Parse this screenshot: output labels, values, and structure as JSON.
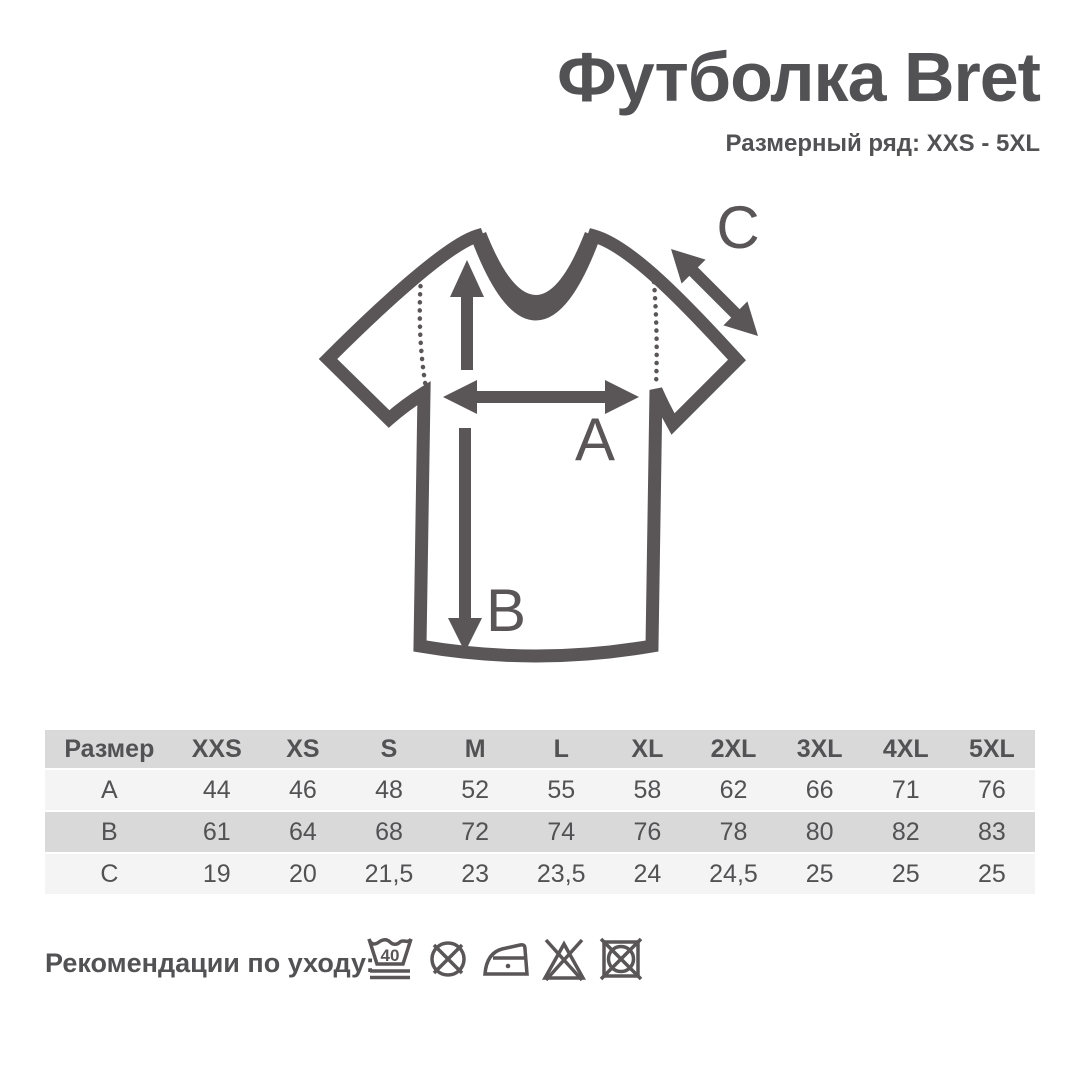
{
  "header": {
    "title": "Футболка Bret",
    "subtitle": "Размерный ряд: XXS - 5XL"
  },
  "diagram": {
    "label_a": "A",
    "label_b": "B",
    "label_c": "C"
  },
  "size_table": {
    "columns": [
      "Размер",
      "XXS",
      "XS",
      "S",
      "M",
      "L",
      "XL",
      "2XL",
      "3XL",
      "4XL",
      "5XL"
    ],
    "rows": [
      {
        "label": "A",
        "values": [
          "44",
          "46",
          "48",
          "52",
          "55",
          "58",
          "62",
          "66",
          "71",
          "76"
        ]
      },
      {
        "label": "B",
        "values": [
          "61",
          "64",
          "68",
          "72",
          "74",
          "76",
          "78",
          "80",
          "82",
          "83"
        ]
      },
      {
        "label": "C",
        "values": [
          "19",
          "20",
          "21,5",
          "23",
          "23,5",
          "24",
          "24,5",
          "25",
          "25",
          "25"
        ]
      }
    ]
  },
  "care": {
    "label": "Рекомендации по уходу:",
    "wash_temperature": "40",
    "icons": [
      "wash-40-gentle",
      "do-not-dry-clean",
      "iron-low-temperature",
      "do-not-bleach",
      "do-not-tumble-dry"
    ]
  },
  "colors": {
    "ink": "#5a5658",
    "text": "#525254",
    "table_header_bg": "#d9d9d9",
    "table_stripe_bg": "#d9d9d9",
    "table_light_bg": "#f4f4f4"
  }
}
